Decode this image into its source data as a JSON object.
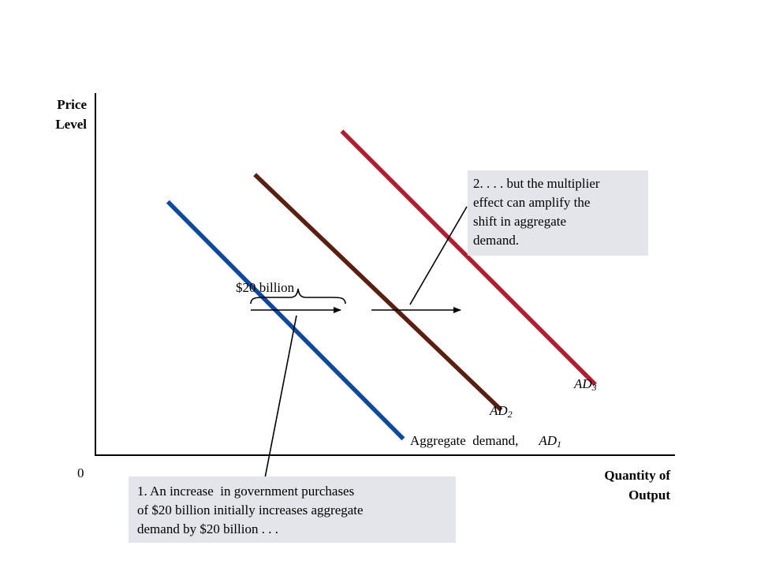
{
  "chart_data": {
    "type": "line",
    "title": "",
    "xlabel": "Quantity of Output",
    "ylabel": "Price Level",
    "origin_label": "0",
    "axis_ticks": "none",
    "grid": false,
    "series": [
      {
        "name": "Aggregate demand, AD1",
        "label_prefix": "Aggregate  demand,",
        "label_main": "AD",
        "label_sub": "1",
        "color": "#0d4a9e",
        "points": [
          [
            1.0,
            7.0
          ],
          [
            4.25,
            0.45
          ]
        ]
      },
      {
        "name": "AD2",
        "label_prefix": "",
        "label_main": "AD",
        "label_sub": "2",
        "color": "#5a1f10",
        "points": [
          [
            2.2,
            7.75
          ],
          [
            5.6,
            1.25
          ]
        ]
      },
      {
        "name": "AD3",
        "label_prefix": "",
        "label_main": "AD",
        "label_sub": "3",
        "color": "#b01e2f",
        "points": [
          [
            3.4,
            8.95
          ],
          [
            6.9,
            1.95
          ]
        ]
      }
    ],
    "annotations": {
      "bracket_label": "$20 billion",
      "note1": "1. An increase in government purchases of $20 billion initially increases aggregate demand by $20 billion . . .",
      "note1_lines": [
        "1. An increase  in government purchases",
        "of $20 billion initially increases aggregate",
        "demand by $20 billion . . ."
      ],
      "note2": "2. . . . but the multiplier effect can amplify the shift in aggregate demand.",
      "note2_lines": [
        "2. . . . but the multiplier",
        "effect can amplify the",
        "shift in aggregate",
        "demand."
      ]
    },
    "colors": {
      "axis": "#000000",
      "callout_bg": "#e3e5ea"
    }
  }
}
